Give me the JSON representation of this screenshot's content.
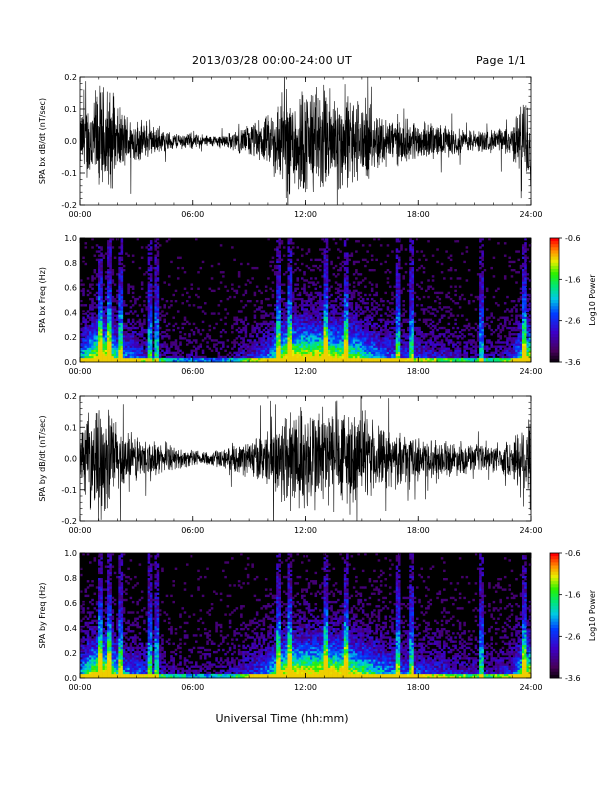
{
  "header": {
    "title": "2013/03/28  00:00-24:00 UT",
    "page": "Page 1/1"
  },
  "colors": {
    "background": "#ffffff",
    "signal": "#000000",
    "spectrogram_bg": "#000000"
  },
  "chart_data": [
    {
      "type": "line",
      "ylabel": "SPA bx dB/dt (nT/sec)",
      "xlim": [
        "00:00",
        "24:00"
      ],
      "ylim": [
        -0.2,
        0.2
      ],
      "x_ticks": [
        "00:00",
        "06:00",
        "12:00",
        "18:00",
        "24:00"
      ],
      "y_ticks": [
        "-0.2",
        "-0.1",
        "0.0",
        "0.1",
        "0.2"
      ],
      "y_tick_values": [
        -0.2,
        -0.1,
        0.0,
        0.1,
        0.2
      ],
      "envelope": {
        "time_h": [
          0,
          0.5,
          1,
          1.5,
          2,
          2.5,
          3,
          4,
          5,
          6,
          7,
          8,
          9,
          10,
          10.5,
          11,
          12,
          13,
          14,
          15,
          16,
          17,
          18,
          19,
          20,
          21,
          22,
          23,
          23.5,
          24
        ],
        "amplitude": [
          0.1,
          0.16,
          0.2,
          0.2,
          0.12,
          0.1,
          0.08,
          0.05,
          0.03,
          0.03,
          0.02,
          0.03,
          0.06,
          0.09,
          0.15,
          0.2,
          0.2,
          0.2,
          0.18,
          0.15,
          0.1,
          0.08,
          0.07,
          0.06,
          0.05,
          0.04,
          0.04,
          0.06,
          0.14,
          0.2
        ]
      }
    },
    {
      "type": "heatmap",
      "ylabel": "SPA bx Freq (Hz)",
      "xlim": [
        "00:00",
        "24:00"
      ],
      "ylim": [
        0.0,
        1.0
      ],
      "x_ticks": [
        "00:00",
        "06:00",
        "12:00",
        "18:00",
        "24:00"
      ],
      "y_ticks": [
        "0.0",
        "0.2",
        "0.4",
        "0.6",
        "0.8",
        "1.0"
      ],
      "y_tick_values": [
        0.0,
        0.2,
        0.4,
        0.6,
        0.8,
        1.0
      ],
      "colorbar": {
        "label": "Log10 Power",
        "min": -3.6,
        "max": -0.6,
        "ticks": [
          "-0.6",
          "-1.6",
          "-2.6",
          "-3.6"
        ]
      }
    },
    {
      "type": "line",
      "ylabel": "SPA by dB/dt (nT/sec)",
      "xlim": [
        "00:00",
        "24:00"
      ],
      "ylim": [
        -0.2,
        0.2
      ],
      "x_ticks": [
        "00:00",
        "06:00",
        "12:00",
        "18:00",
        "24:00"
      ],
      "y_ticks": [
        "-0.2",
        "-0.1",
        "0.0",
        "0.1",
        "0.2"
      ],
      "y_tick_values": [
        -0.2,
        -0.1,
        0.0,
        0.1,
        0.2
      ],
      "envelope": {
        "time_h": [
          0,
          0.5,
          1,
          1.5,
          2,
          2.5,
          3,
          4,
          5,
          6,
          7,
          8,
          9,
          10,
          10.5,
          11,
          12,
          13,
          14,
          15,
          16,
          17,
          18,
          19,
          20,
          21,
          22,
          23,
          23.5,
          24
        ],
        "amplitude": [
          0.1,
          0.16,
          0.2,
          0.2,
          0.13,
          0.1,
          0.09,
          0.06,
          0.04,
          0.03,
          0.03,
          0.04,
          0.07,
          0.1,
          0.16,
          0.2,
          0.2,
          0.2,
          0.2,
          0.16,
          0.12,
          0.09,
          0.08,
          0.07,
          0.06,
          0.05,
          0.05,
          0.07,
          0.15,
          0.2
        ]
      }
    },
    {
      "type": "heatmap",
      "ylabel": "SPA by Freq (Hz)",
      "xlim": [
        "00:00",
        "24:00"
      ],
      "ylim": [
        0.0,
        1.0
      ],
      "x_ticks": [
        "00:00",
        "06:00",
        "12:00",
        "18:00",
        "24:00"
      ],
      "y_ticks": [
        "0.0",
        "0.2",
        "0.4",
        "0.6",
        "0.8",
        "1.0"
      ],
      "y_tick_values": [
        0.0,
        0.2,
        0.4,
        0.6,
        0.8,
        1.0
      ],
      "colorbar": {
        "label": "Log10 Power",
        "min": -3.6,
        "max": -0.6,
        "ticks": [
          "-0.6",
          "-1.6",
          "-2.6",
          "-3.6"
        ]
      }
    }
  ],
  "footer": {
    "xlabel": "Universal Time (hh:mm)"
  }
}
